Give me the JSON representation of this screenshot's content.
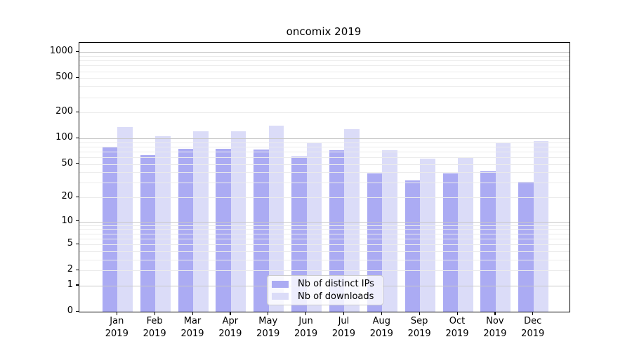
{
  "title": "oncomix 2019",
  "colors": {
    "ips_bar": "#ababf3",
    "downloads_bar": "#dbdcf8",
    "grid_minor": "#ebebeb",
    "grid_major": "#c8c8c8",
    "axis": "#000000",
    "legend_border": "#cccccc"
  },
  "chart_data": {
    "type": "bar",
    "title": "oncomix 2019",
    "categories": [
      "Jan",
      "Feb",
      "Mar",
      "Apr",
      "May",
      "Jun",
      "Jul",
      "Aug",
      "Sep",
      "Oct",
      "Nov",
      "Dec"
    ],
    "category_year": "2019",
    "series": [
      {
        "name": "Nb of distinct IPs",
        "color": "#ababf3",
        "values": [
          80,
          64,
          76,
          75,
          74,
          61,
          73,
          39,
          32,
          39,
          41,
          31
        ]
      },
      {
        "name": "Nb of downloads",
        "color": "#dbdcf8",
        "values": [
          135,
          105,
          120,
          122,
          140,
          89,
          129,
          73,
          58,
          59,
          89,
          93
        ]
      }
    ],
    "xlabel": "",
    "ylabel": "",
    "yscale": "log1p",
    "ylim": [
      0,
      1283
    ],
    "ytick_labels": [
      0,
      1,
      2,
      5,
      10,
      20,
      50,
      100,
      200,
      500,
      1000
    ],
    "grid": "on",
    "grid_major_values": [
      1,
      10,
      100,
      1000
    ],
    "legend_position": "lower center"
  }
}
